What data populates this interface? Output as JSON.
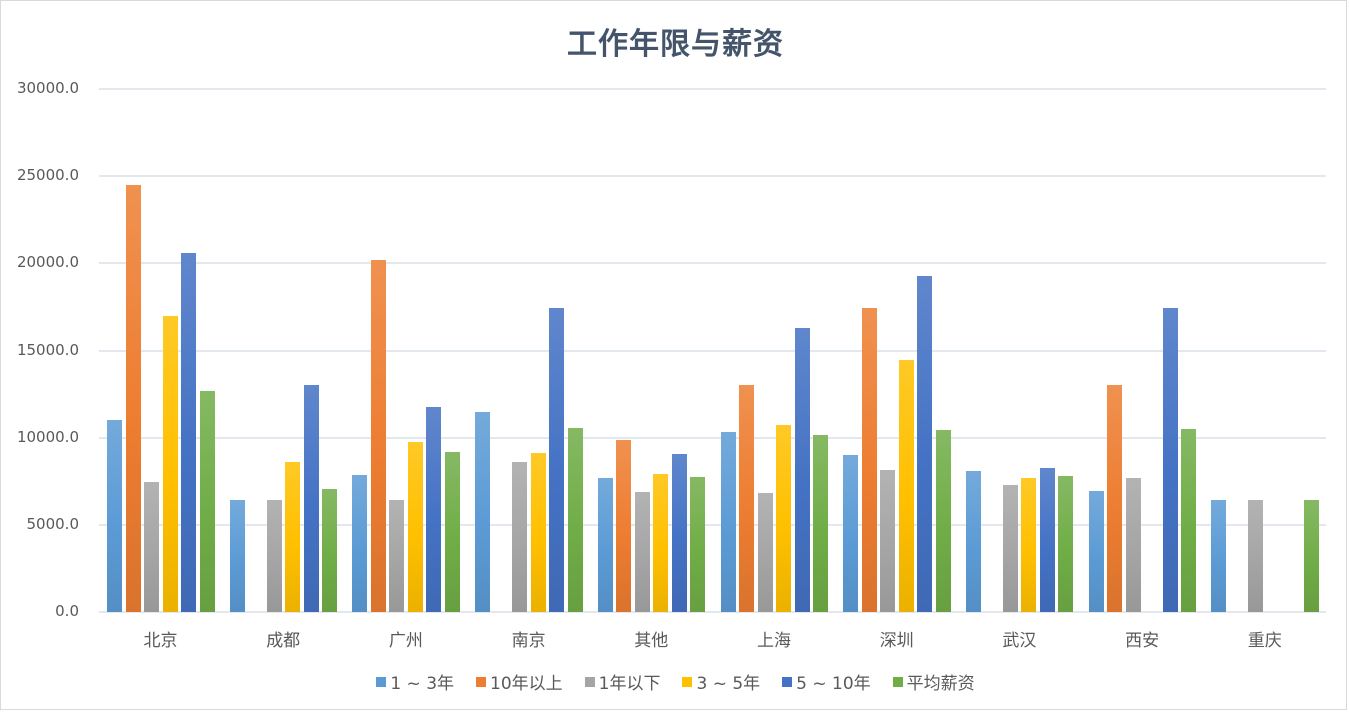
{
  "chart_data": {
    "type": "bar",
    "title": "工作年限与薪资",
    "xlabel": "",
    "ylabel": "",
    "ylim": [
      0,
      30000
    ],
    "yticks": [
      "0.0",
      "5000.0",
      "10000.0",
      "15000.0",
      "20000.0",
      "25000.0",
      "30000.0"
    ],
    "grid": true,
    "legend_position": "bottom",
    "categories": [
      "北京",
      "成都",
      "广州",
      "南京",
      "其他",
      "上海",
      "深圳",
      "武汉",
      "西安",
      "重庆"
    ],
    "series": [
      {
        "name": "1 ~ 3年",
        "color": "#5b9bd5",
        "values": [
          11000,
          6400,
          7850,
          11450,
          7700,
          10300,
          9000,
          8100,
          6950,
          6400
        ]
      },
      {
        "name": "10年以上",
        "color": "#ed7d31",
        "values": [
          24500,
          null,
          20200,
          null,
          9850,
          13000,
          17450,
          null,
          13000,
          null
        ]
      },
      {
        "name": "1年以下",
        "color": "#a5a5a5",
        "values": [
          7450,
          6400,
          6400,
          8600,
          6900,
          6800,
          8150,
          7300,
          7700,
          6400
        ]
      },
      {
        "name": "3 ~ 5年",
        "color": "#ffc000",
        "values": [
          17000,
          8600,
          9750,
          9100,
          7900,
          10700,
          14450,
          7700,
          null,
          null
        ]
      },
      {
        "name": "5 ~ 10年",
        "color": "#4472c4",
        "values": [
          20600,
          13000,
          11750,
          17450,
          9050,
          16300,
          19250,
          8250,
          17450,
          null
        ]
      },
      {
        "name": "平均薪资",
        "color": "#70ad47",
        "values": [
          12700,
          7050,
          9200,
          10550,
          7750,
          10150,
          10450,
          7800,
          10500,
          6400
        ]
      }
    ]
  },
  "legend": [
    {
      "label": "1 ~ 3年"
    },
    {
      "label": "10年以上"
    },
    {
      "label": "1年以下"
    },
    {
      "label": "3 ~ 5年"
    },
    {
      "label": "5 ~ 10年"
    },
    {
      "label": "平均薪资"
    }
  ]
}
